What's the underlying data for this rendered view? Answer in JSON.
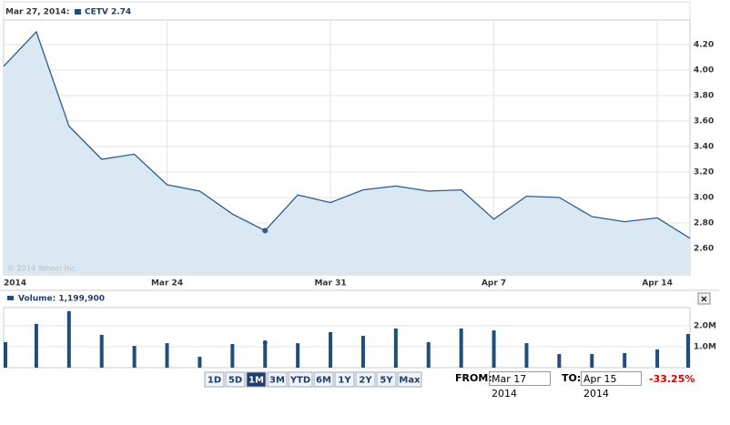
{
  "header": {
    "date": "Mar 27, 2014:",
    "quote": "CETV 2.74",
    "copyright": "© 2014 Yahoo! Inc."
  },
  "chart_data": [
    {
      "type": "area",
      "color": "#2a5d8f",
      "fill": "#d9e8f3",
      "categories": [
        "2014",
        null,
        null,
        null,
        null,
        "Mar 24",
        null,
        null,
        null,
        null,
        "Mar 31",
        null,
        null,
        null,
        null,
        "Apr 7",
        null,
        null,
        null,
        null,
        "Apr 14",
        null
      ],
      "values": [
        4.03,
        4.3,
        3.56,
        3.3,
        3.34,
        3.1,
        3.05,
        2.87,
        2.74,
        3.02,
        2.96,
        3.06,
        3.09,
        3.05,
        3.06,
        2.83,
        3.01,
        3.0,
        2.85,
        2.81,
        2.84,
        2.68
      ],
      "ylim": [
        2.4,
        4.4
      ],
      "yticks": [
        {
          "value": 2.6,
          "label": "2.60"
        },
        {
          "value": 2.8,
          "label": "2.80"
        },
        {
          "value": 3.0,
          "label": "3.00"
        },
        {
          "value": 3.2,
          "label": "3.20"
        },
        {
          "value": 3.4,
          "label": "3.40"
        },
        {
          "value": 3.6,
          "label": "3.60"
        },
        {
          "value": 3.8,
          "label": "3.80"
        },
        {
          "value": 4.0,
          "label": "4.00"
        },
        {
          "value": 4.2,
          "label": "4.20"
        }
      ],
      "grid": true
    },
    {
      "type": "bar",
      "title": "Volume: 1,199,900",
      "color": "#1f4e7d",
      "values": [
        1.22,
        2.09,
        2.7,
        1.57,
        1.04,
        1.17,
        0.52,
        1.13,
        1.1999,
        1.17,
        1.7,
        1.52,
        1.87,
        1.22,
        1.87,
        1.78,
        1.17,
        0.65,
        0.65,
        0.7,
        0.87,
        1.61
      ],
      "ylim": [
        0,
        2.87
      ],
      "yticks": [
        {
          "value": 1,
          "label": "1.0M"
        },
        {
          "value": 2,
          "label": "2.0M"
        }
      ],
      "grid": true
    }
  ],
  "controls": {
    "ranges": [
      "1D",
      "5D",
      "1M",
      "3M",
      "YTD",
      "6M",
      "1Y",
      "2Y",
      "5Y",
      "Max"
    ],
    "active": 2,
    "from_label": "FROM:",
    "from": "Mar 17 2014",
    "to_label": "TO:",
    "to": "Apr 15 2014",
    "change": "-33.25%",
    "close": "×"
  }
}
